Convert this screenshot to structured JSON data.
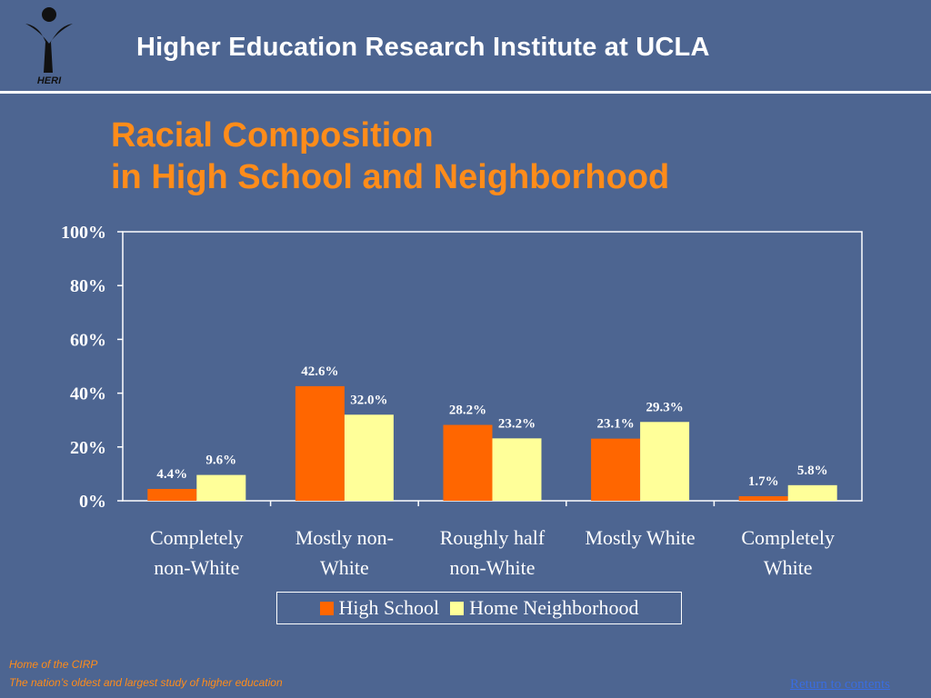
{
  "header": {
    "title": "Higher Education Research Institute at UCLA",
    "logo_text": "HERI"
  },
  "slide": {
    "title_line1": "Racial Composition",
    "title_line2": "in High School and Neighborhood"
  },
  "footer": {
    "line1": "Home of the CIRP",
    "line2": "The nation’s oldest and largest study of higher education",
    "return_link": "Return to contents"
  },
  "colors": {
    "background": "#4d6591",
    "title_orange": "#ff8c1a",
    "high_school": "#ff6600",
    "neighborhood": "#ffff99"
  },
  "chart_data": {
    "type": "bar",
    "categories": [
      [
        "Completely",
        "non-White"
      ],
      [
        "Mostly non-",
        "White"
      ],
      [
        "Roughly half",
        "non-White"
      ],
      [
        "Mostly White"
      ],
      [
        "Completely",
        "White"
      ]
    ],
    "series": [
      {
        "name": "High School",
        "values": [
          4.4,
          42.6,
          28.2,
          23.1,
          1.7
        ],
        "labels": [
          "4.4%",
          "42.6%",
          "28.2%",
          "23.1%",
          "1.7%"
        ],
        "color": "#ff6600"
      },
      {
        "name": "Home Neighborhood",
        "values": [
          9.6,
          32.0,
          23.2,
          29.3,
          5.8
        ],
        "labels": [
          "9.6%",
          "32.0%",
          "23.2%",
          "29.3%",
          "5.8%"
        ],
        "color": "#ffff99"
      }
    ],
    "ylim": [
      0,
      100
    ],
    "yticks": [
      "0%",
      "20%",
      "40%",
      "60%",
      "80%",
      "100%"
    ],
    "legend": "bottom",
    "grid": false
  }
}
